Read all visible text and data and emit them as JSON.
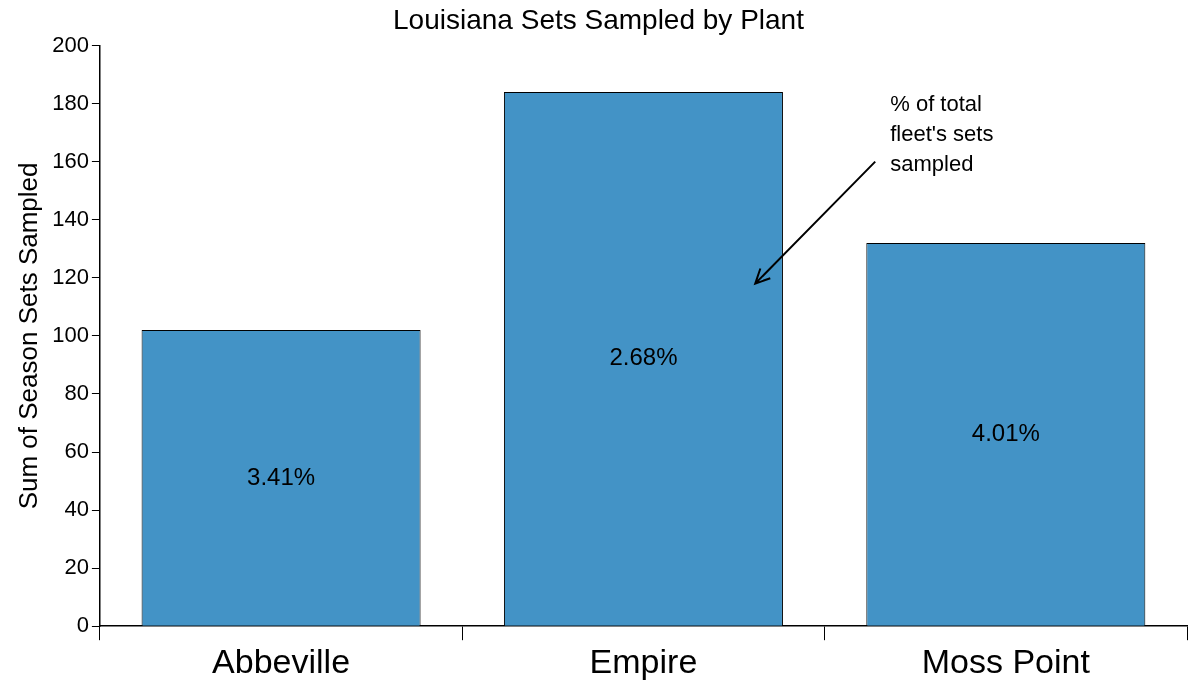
{
  "chart_data": {
    "type": "bar",
    "title": "Louisiana Sets Sampled by Plant",
    "ylabel": "Sum of Season Sets Sampled",
    "categories": [
      "Abbeville",
      "Empire",
      "Moss Point"
    ],
    "values": [
      102,
      184,
      132
    ],
    "color": "#4393c6",
    "ylim": [
      0,
      200
    ],
    "yticks": [
      0,
      20,
      40,
      60,
      80,
      100,
      120,
      140,
      160,
      180,
      200
    ],
    "grid": false,
    "legend": false,
    "annotations": [
      "3.41%",
      "2.68%",
      "4.01%",
      "% of total fleet's sets sampled"
    ]
  }
}
